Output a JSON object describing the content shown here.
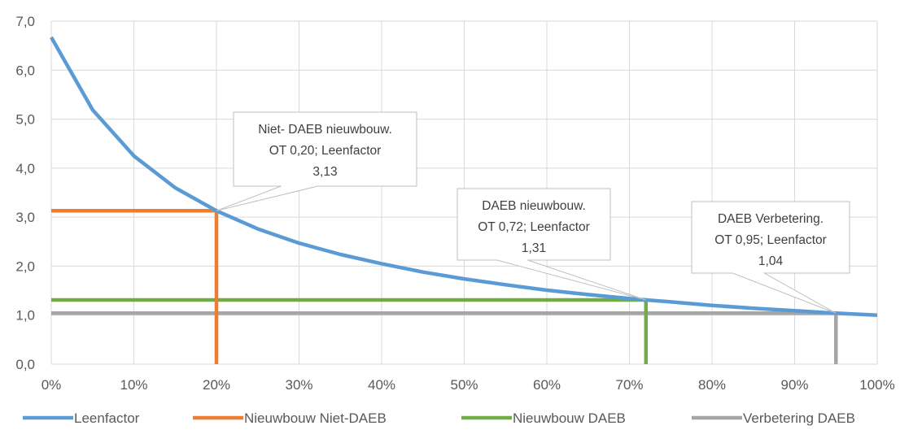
{
  "chart_data": {
    "type": "line",
    "title": "",
    "xlabel": "",
    "ylabel": "",
    "xlim": [
      0,
      1
    ],
    "ylim": [
      0,
      7
    ],
    "grid": true,
    "legend_position": "bottom",
    "x_ticks": [
      "0%",
      "10%",
      "20%",
      "30%",
      "40%",
      "50%",
      "60%",
      "70%",
      "80%",
      "90%",
      "100%"
    ],
    "y_ticks": [
      "0,0",
      "1,0",
      "2,0",
      "3,0",
      "4,0",
      "5,0",
      "6,0",
      "7,0"
    ],
    "x_tick_values": [
      0,
      0.1,
      0.2,
      0.3,
      0.4,
      0.5,
      0.6,
      0.7,
      0.8,
      0.9,
      1.0
    ],
    "y_tick_values": [
      0,
      1,
      2,
      3,
      4,
      5,
      6,
      7
    ],
    "series": [
      {
        "name": "Leenfactor",
        "color": "#5B9BD5",
        "x": [
          0,
          0.05,
          0.1,
          0.15,
          0.2,
          0.25,
          0.3,
          0.35,
          0.4,
          0.45,
          0.5,
          0.55,
          0.6,
          0.65,
          0.7,
          0.72,
          0.75,
          0.8,
          0.85,
          0.9,
          0.95,
          1.0
        ],
        "y": [
          6.67,
          5.19,
          4.25,
          3.6,
          3.13,
          2.76,
          2.47,
          2.24,
          2.05,
          1.88,
          1.74,
          1.62,
          1.51,
          1.42,
          1.34,
          1.31,
          1.27,
          1.2,
          1.14,
          1.09,
          1.04,
          1.0
        ]
      },
      {
        "name": "Nieuwbouw Niet-DAEB",
        "color": "#ED7D31",
        "x": [
          0,
          0.2,
          0.2
        ],
        "y": [
          3.13,
          3.13,
          0
        ]
      },
      {
        "name": "Nieuwbouw DAEB",
        "color": "#70AD47",
        "x": [
          0,
          0.72,
          0.72
        ],
        "y": [
          1.31,
          1.31,
          0
        ]
      },
      {
        "name": "Verbetering DAEB",
        "color": "#A5A5A5",
        "x": [
          0,
          0.95,
          0.95
        ],
        "y": [
          1.04,
          1.04,
          0
        ]
      }
    ],
    "annotations": [
      {
        "name": "callout-niet-daeb",
        "lines": [
          "Niet- DAEB nieuwbouw.",
          "OT 0,20; Leenfactor",
          "3,13"
        ],
        "target_x": 0.2,
        "target_y": 3.13
      },
      {
        "name": "callout-daeb-nieuwbouw",
        "lines": [
          "DAEB nieuwbouw.",
          "OT 0,72; Leenfactor",
          "1,31"
        ],
        "target_x": 0.72,
        "target_y": 1.31
      },
      {
        "name": "callout-daeb-verbetering",
        "lines": [
          "DAEB Verbetering.",
          "OT 0,95; Leenfactor",
          "1,04"
        ],
        "target_x": 0.95,
        "target_y": 1.04
      }
    ]
  }
}
